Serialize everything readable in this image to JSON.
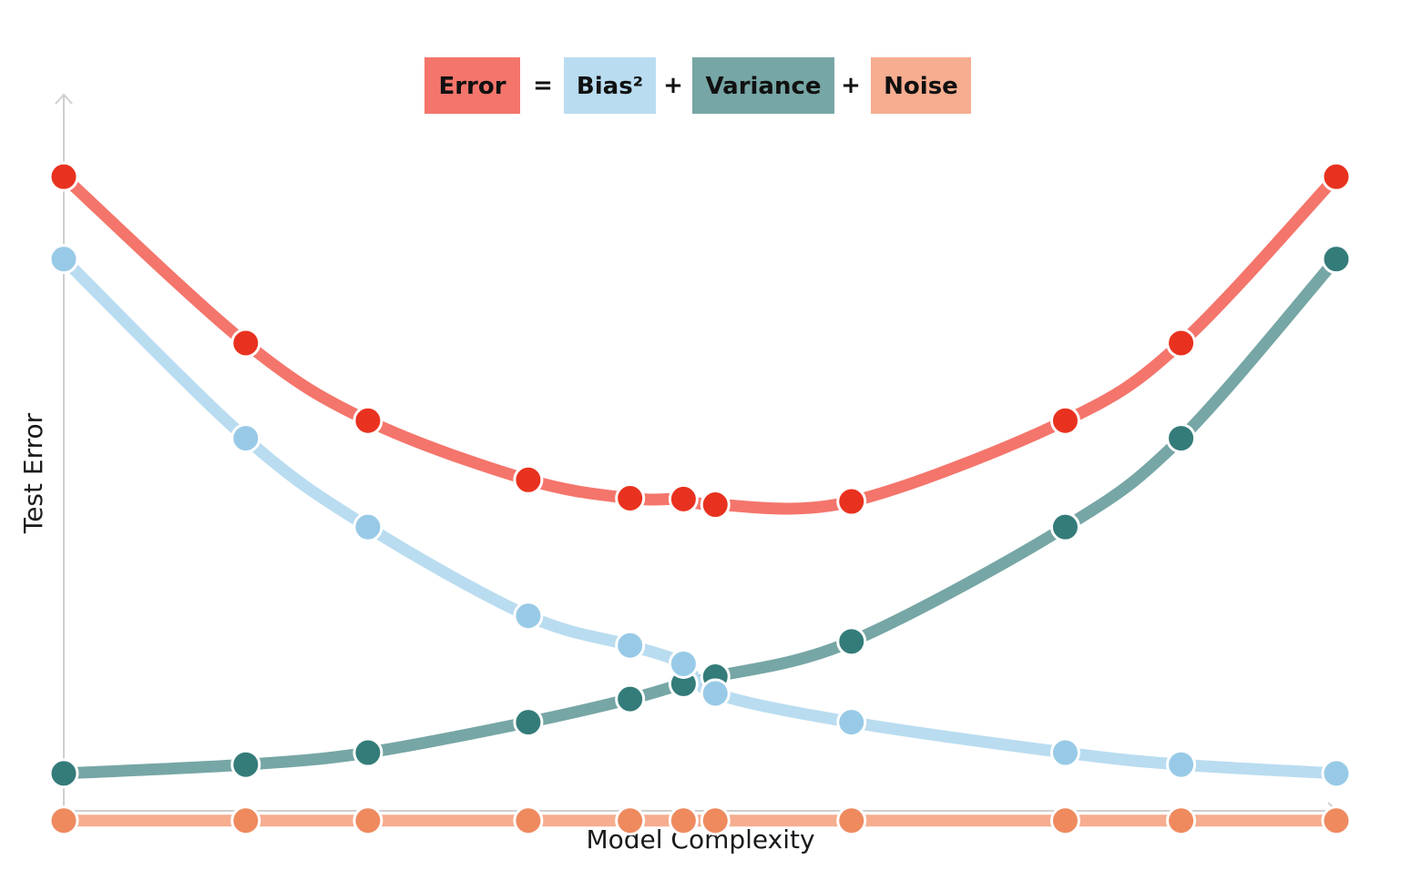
{
  "chart_data": {
    "type": "line",
    "title": "",
    "xlabel": "Model Complexity",
    "ylabel": "Test Error",
    "grid": false,
    "legend": {
      "placement": "top-center",
      "items": [
        {
          "label": "Error",
          "color": "#f4756b"
        },
        {
          "label": "Bias²",
          "color": "#b9dcf0"
        },
        {
          "label": "Variance",
          "color": "#76a6a5"
        },
        {
          "label": "Noise",
          "color": "#f6ad90"
        }
      ],
      "operators": [
        "=",
        "+",
        "+"
      ]
    },
    "x": [
      0,
      1.43,
      2.39,
      3.65,
      4.45,
      4.87,
      5.12,
      6.19,
      7.87,
      8.78,
      10
    ],
    "xlim": [
      0,
      10
    ],
    "ylim": [
      0,
      10
    ],
    "series": [
      {
        "name": "Error",
        "line_color": "#f4756b",
        "point_color": "#e8321f",
        "values": [
          8.69,
          6.61,
          5.64,
          4.9,
          4.67,
          4.66,
          4.59,
          4.63,
          5.64,
          6.61,
          8.69
        ]
      },
      {
        "name": "Bias²",
        "line_color": "#b9dcf0",
        "point_color": "#98cae7",
        "values": [
          7.66,
          5.42,
          4.31,
          3.2,
          2.83,
          2.6,
          2.23,
          1.87,
          1.49,
          1.34,
          1.23
        ]
      },
      {
        "name": "Variance",
        "line_color": "#76a6a5",
        "point_color": "#347c7a",
        "values": [
          1.23,
          1.34,
          1.49,
          1.87,
          2.16,
          2.35,
          2.44,
          2.88,
          4.31,
          5.42,
          7.66
        ]
      },
      {
        "name": "Noise",
        "line_color": "#f6ad90",
        "point_color": "#ef8a5f",
        "values": [
          0.64,
          0.64,
          0.64,
          0.64,
          0.64,
          0.64,
          0.64,
          0.64,
          0.64,
          0.64,
          0.64
        ]
      }
    ]
  }
}
